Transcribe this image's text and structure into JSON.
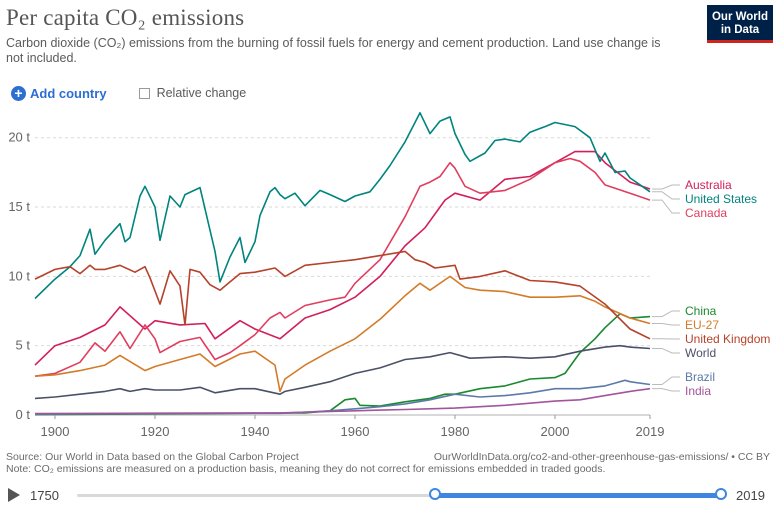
{
  "header": {
    "title": "Per capita CO₂ emissions",
    "subtitle": "Carbon dioxide (CO₂) emissions from the burning of fossil fuels for energy and cement production. Land use change is not included.",
    "logo_line1": "Our World",
    "logo_line2": "in Data"
  },
  "controls": {
    "add_country_label": "Add country",
    "relative_change_label": "Relative change"
  },
  "footer": {
    "source": "Source: Our World in Data based on the Global Carbon Project",
    "url": "OurWorldInData.org/co2-and-other-greenhouse-gas-emissions/ • CC BY",
    "note": "Note: CO₂ emissions are measured on a production basis, meaning they do not correct for emissions embedded in traded goods."
  },
  "timeline": {
    "start_label": "1750",
    "end_label": "2019",
    "range_start_year": 1896,
    "range_end_year": 2019
  },
  "chart_data": {
    "type": "line",
    "title": "Per capita CO₂ emissions",
    "unit": "t",
    "xlim": [
      1896,
      2019
    ],
    "ylim": [
      0,
      22
    ],
    "x_ticks": [
      1900,
      1920,
      1940,
      1960,
      1980,
      2000,
      2019
    ],
    "y_ticks": [
      0,
      5,
      10,
      15,
      20
    ],
    "y_tick_labels": [
      "0 t",
      "5 t",
      "10 t",
      "15 t",
      "20 t"
    ],
    "grid": "horizontal dashed",
    "legend": "right, labels at line ends",
    "series": [
      {
        "name": "Australia",
        "color": "#d21f5b",
        "x": [
          1896,
          1900,
          1905,
          1910,
          1913,
          1918,
          1920,
          1925,
          1930,
          1932,
          1937,
          1940,
          1945,
          1950,
          1955,
          1960,
          1965,
          1970,
          1974,
          1978,
          1980,
          1985,
          1990,
          1995,
          2000,
          2004,
          2008,
          2010,
          2015,
          2019
        ],
        "y": [
          3.6,
          5.0,
          5.6,
          6.5,
          7.8,
          6.2,
          6.8,
          6.5,
          6.6,
          5.5,
          6.8,
          6.2,
          5.5,
          7.0,
          7.6,
          8.5,
          10.0,
          12.2,
          13.5,
          15.5,
          16.0,
          15.5,
          17.0,
          17.2,
          18.2,
          19.0,
          19.0,
          18.2,
          16.8,
          16.3
        ]
      },
      {
        "name": "United States",
        "color": "#00847e",
        "x": [
          1896,
          1900,
          1903,
          1905,
          1907,
          1908,
          1910,
          1913,
          1914,
          1915,
          1917,
          1918,
          1920,
          1921,
          1923,
          1925,
          1926,
          1929,
          1932,
          1933,
          1935,
          1937,
          1938,
          1940,
          1941,
          1943,
          1944,
          1945,
          1946,
          1948,
          1950,
          1953,
          1955,
          1958,
          1960,
          1963,
          1965,
          1967,
          1970,
          1973,
          1975,
          1977,
          1979,
          1980,
          1982,
          1983,
          1986,
          1988,
          1990,
          1993,
          1995,
          1998,
          2000,
          2004,
          2007,
          2009,
          2010,
          2012,
          2014,
          2015,
          2019
        ],
        "y": [
          8.4,
          9.8,
          10.7,
          11.5,
          13.4,
          11.6,
          12.6,
          13.8,
          12.5,
          12.8,
          15.8,
          16.5,
          15.0,
          12.6,
          15.8,
          15.0,
          15.9,
          16.4,
          11.8,
          9.6,
          11.4,
          12.8,
          11.0,
          12.5,
          14.4,
          16.1,
          16.4,
          15.9,
          15.6,
          16.0,
          15.1,
          16.2,
          15.9,
          15.4,
          15.8,
          16.1,
          17.0,
          18.0,
          19.7,
          21.8,
          20.3,
          21.2,
          21.5,
          20.3,
          18.8,
          18.3,
          18.9,
          19.8,
          19.9,
          19.7,
          20.4,
          20.8,
          21.1,
          20.8,
          20.0,
          18.3,
          18.9,
          17.5,
          17.6,
          17.1,
          16.1
        ]
      },
      {
        "name": "Canada",
        "color": "#e03e5e",
        "x": [
          1896,
          1900,
          1905,
          1908,
          1910,
          1913,
          1915,
          1918,
          1920,
          1921,
          1925,
          1929,
          1932,
          1935,
          1937,
          1940,
          1943,
          1945,
          1946,
          1950,
          1955,
          1958,
          1960,
          1965,
          1970,
          1973,
          1975,
          1977,
          1979,
          1980,
          1982,
          1985,
          1990,
          1995,
          2000,
          2003,
          2005,
          2008,
          2010,
          2015,
          2019
        ],
        "y": [
          2.8,
          3.0,
          3.8,
          5.2,
          4.6,
          6.0,
          4.8,
          6.5,
          5.5,
          4.5,
          5.3,
          5.6,
          4.0,
          4.5,
          5.0,
          5.8,
          7.0,
          7.4,
          7.0,
          7.9,
          8.3,
          8.5,
          9.5,
          11.2,
          14.3,
          16.5,
          16.8,
          17.2,
          18.2,
          17.8,
          16.5,
          16.0,
          16.2,
          17.0,
          18.2,
          18.5,
          18.3,
          17.5,
          16.6,
          16.0,
          15.5
        ]
      },
      {
        "name": "China",
        "color": "#1a8a2e",
        "x": [
          1896,
          1950,
          1955,
          1958,
          1960,
          1961,
          1965,
          1970,
          1975,
          1978,
          1980,
          1985,
          1990,
          1995,
          2000,
          2002,
          2005,
          2008,
          2010,
          2013,
          2015,
          2019
        ],
        "y": [
          0.02,
          0.15,
          0.3,
          1.1,
          1.2,
          0.7,
          0.65,
          0.95,
          1.2,
          1.5,
          1.5,
          1.9,
          2.1,
          2.6,
          2.7,
          3.0,
          4.5,
          5.5,
          6.3,
          7.3,
          7.0,
          7.1
        ]
      },
      {
        "name": "EU-27",
        "color": "#d47b29",
        "x": [
          1896,
          1900,
          1905,
          1910,
          1913,
          1918,
          1920,
          1925,
          1929,
          1932,
          1937,
          1940,
          1944,
          1945,
          1946,
          1950,
          1955,
          1960,
          1965,
          1970,
          1973,
          1975,
          1979,
          1982,
          1985,
          1990,
          1995,
          2000,
          2005,
          2008,
          2010,
          2015,
          2019
        ],
        "y": [
          2.8,
          2.9,
          3.2,
          3.6,
          4.3,
          3.2,
          3.5,
          4.0,
          4.4,
          3.5,
          4.4,
          4.6,
          3.6,
          1.7,
          2.6,
          3.6,
          4.6,
          5.5,
          6.9,
          8.6,
          9.5,
          9.0,
          10.0,
          9.2,
          9.0,
          8.9,
          8.5,
          8.5,
          8.6,
          8.2,
          7.8,
          7.0,
          6.6
        ]
      },
      {
        "name": "United Kingdom",
        "color": "#b5422a",
        "x": [
          1896,
          1900,
          1903,
          1905,
          1907,
          1908,
          1910,
          1913,
          1916,
          1918,
          1919,
          1921,
          1922,
          1923,
          1925,
          1926,
          1927,
          1929,
          1931,
          1933,
          1935,
          1937,
          1940,
          1944,
          1946,
          1950,
          1955,
          1960,
          1965,
          1970,
          1972,
          1974,
          1976,
          1980,
          1981,
          1985,
          1990,
          1995,
          2000,
          2005,
          2010,
          2015,
          2019
        ],
        "y": [
          9.8,
          10.5,
          10.7,
          10.2,
          10.8,
          10.5,
          10.5,
          10.8,
          10.3,
          10.7,
          9.9,
          8.0,
          9.2,
          10.4,
          9.3,
          6.5,
          10.5,
          10.3,
          9.4,
          9.0,
          9.6,
          10.2,
          10.3,
          10.6,
          10.0,
          10.8,
          11.0,
          11.2,
          11.5,
          11.8,
          11.2,
          11.0,
          10.6,
          10.8,
          9.8,
          10.0,
          10.4,
          9.7,
          9.6,
          9.3,
          8.0,
          6.2,
          5.5
        ]
      },
      {
        "name": "World",
        "color": "#4a5066",
        "x": [
          1896,
          1900,
          1905,
          1910,
          1913,
          1915,
          1918,
          1920,
          1925,
          1929,
          1932,
          1937,
          1940,
          1945,
          1946,
          1950,
          1955,
          1960,
          1965,
          1970,
          1975,
          1979,
          1983,
          1990,
          1995,
          2000,
          2005,
          2010,
          2013,
          2015,
          2019
        ],
        "y": [
          1.2,
          1.3,
          1.5,
          1.7,
          1.9,
          1.7,
          1.9,
          1.8,
          1.8,
          2.0,
          1.6,
          1.9,
          1.9,
          1.5,
          1.7,
          2.0,
          2.4,
          3.0,
          3.4,
          4.0,
          4.2,
          4.5,
          4.1,
          4.2,
          4.1,
          4.2,
          4.6,
          4.9,
          5.0,
          4.9,
          4.8
        ]
      },
      {
        "name": "Brazil",
        "color": "#5b7aa7",
        "x": [
          1896,
          1920,
          1945,
          1950,
          1955,
          1960,
          1965,
          1970,
          1975,
          1980,
          1985,
          1990,
          1995,
          2000,
          2005,
          2010,
          2012,
          2014,
          2015,
          2019
        ],
        "y": [
          0.05,
          0.1,
          0.12,
          0.2,
          0.3,
          0.45,
          0.6,
          0.8,
          1.1,
          1.5,
          1.3,
          1.4,
          1.6,
          1.9,
          1.9,
          2.1,
          2.3,
          2.5,
          2.4,
          2.2
        ]
      },
      {
        "name": "India",
        "color": "#a2559c",
        "x": [
          1896,
          1920,
          1945,
          1950,
          1955,
          1960,
          1965,
          1970,
          1975,
          1980,
          1985,
          1990,
          1995,
          2000,
          2005,
          2010,
          2015,
          2019
        ],
        "y": [
          0.1,
          0.13,
          0.15,
          0.2,
          0.25,
          0.3,
          0.35,
          0.4,
          0.45,
          0.5,
          0.6,
          0.7,
          0.85,
          1.0,
          1.1,
          1.4,
          1.7,
          1.9
        ]
      }
    ]
  }
}
